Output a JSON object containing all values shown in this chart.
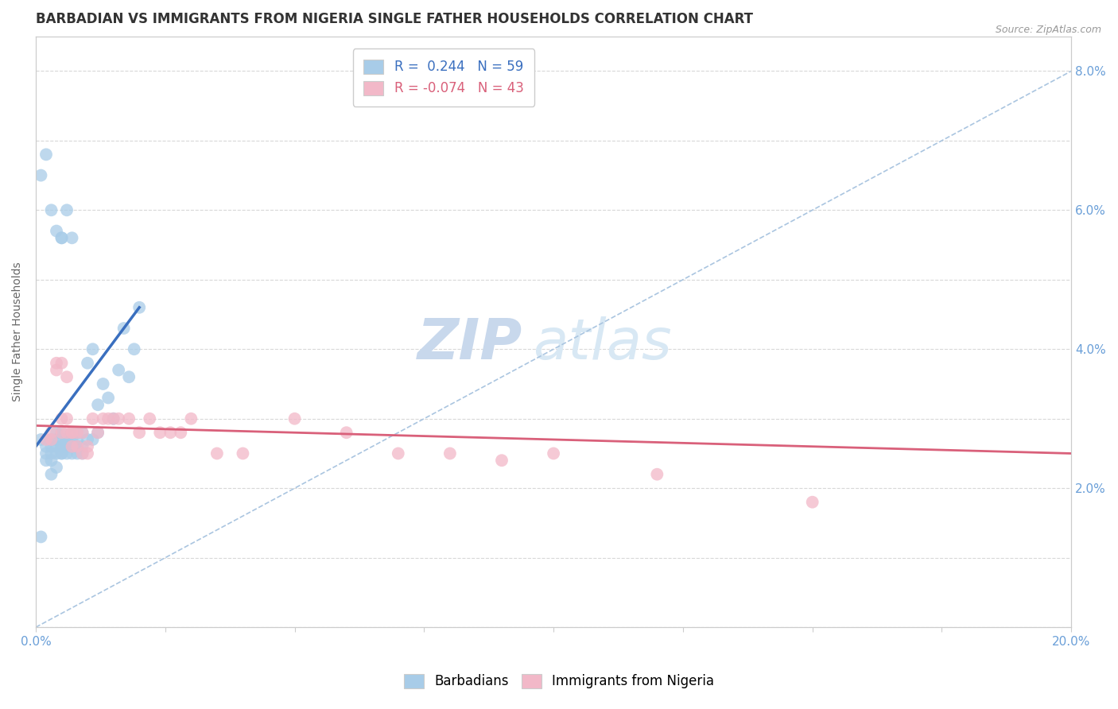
{
  "title": "BARBADIAN VS IMMIGRANTS FROM NIGERIA SINGLE FATHER HOUSEHOLDS CORRELATION CHART",
  "source": "Source: ZipAtlas.com",
  "ylabel": "Single Father Households",
  "xlabel": "",
  "xlim": [
    0.0,
    0.2
  ],
  "ylim": [
    0.0,
    0.085
  ],
  "xticks": [
    0.0,
    0.025,
    0.05,
    0.075,
    0.1,
    0.125,
    0.15,
    0.175,
    0.2
  ],
  "yticks_right": [
    0.02,
    0.04,
    0.06,
    0.08
  ],
  "yticklabels_right": [
    "2.0%",
    "4.0%",
    "6.0%",
    "8.0%"
  ],
  "legend_r1": "R =  0.244   N = 59",
  "legend_r2": "R = -0.074   N = 43",
  "color_blue": "#a8cce8",
  "color_pink": "#f2b8c8",
  "color_blue_line": "#3a6fbf",
  "color_pink_line": "#d9607a",
  "color_dashed": "#aac5e0",
  "watermark_zip": "ZIP",
  "watermark_atlas": "atlas",
  "blue_x": [
    0.001,
    0.001,
    0.002,
    0.002,
    0.002,
    0.003,
    0.003,
    0.003,
    0.003,
    0.003,
    0.004,
    0.004,
    0.004,
    0.004,
    0.004,
    0.005,
    0.005,
    0.005,
    0.005,
    0.005,
    0.005,
    0.006,
    0.006,
    0.006,
    0.006,
    0.006,
    0.007,
    0.007,
    0.007,
    0.007,
    0.008,
    0.008,
    0.008,
    0.008,
    0.009,
    0.009,
    0.009,
    0.01,
    0.01,
    0.011,
    0.011,
    0.012,
    0.012,
    0.013,
    0.014,
    0.015,
    0.016,
    0.017,
    0.018,
    0.019,
    0.02,
    0.001,
    0.002,
    0.003,
    0.004,
    0.005,
    0.005,
    0.006,
    0.007
  ],
  "blue_y": [
    0.027,
    0.013,
    0.026,
    0.025,
    0.024,
    0.026,
    0.027,
    0.025,
    0.024,
    0.022,
    0.025,
    0.026,
    0.027,
    0.028,
    0.023,
    0.026,
    0.027,
    0.025,
    0.028,
    0.026,
    0.025,
    0.026,
    0.025,
    0.026,
    0.027,
    0.027,
    0.025,
    0.027,
    0.028,
    0.026,
    0.025,
    0.026,
    0.027,
    0.028,
    0.025,
    0.026,
    0.028,
    0.027,
    0.038,
    0.027,
    0.04,
    0.028,
    0.032,
    0.035,
    0.033,
    0.03,
    0.037,
    0.043,
    0.036,
    0.04,
    0.046,
    0.065,
    0.068,
    0.06,
    0.057,
    0.056,
    0.056,
    0.06,
    0.056
  ],
  "pink_x": [
    0.002,
    0.003,
    0.003,
    0.004,
    0.004,
    0.005,
    0.005,
    0.005,
    0.006,
    0.006,
    0.006,
    0.007,
    0.007,
    0.007,
    0.008,
    0.008,
    0.009,
    0.009,
    0.01,
    0.01,
    0.011,
    0.012,
    0.013,
    0.014,
    0.015,
    0.016,
    0.018,
    0.02,
    0.022,
    0.024,
    0.026,
    0.028,
    0.03,
    0.035,
    0.04,
    0.05,
    0.06,
    0.07,
    0.08,
    0.09,
    0.1,
    0.12,
    0.15
  ],
  "pink_y": [
    0.027,
    0.027,
    0.028,
    0.037,
    0.038,
    0.038,
    0.03,
    0.028,
    0.036,
    0.03,
    0.028,
    0.028,
    0.028,
    0.026,
    0.028,
    0.026,
    0.028,
    0.025,
    0.026,
    0.025,
    0.03,
    0.028,
    0.03,
    0.03,
    0.03,
    0.03,
    0.03,
    0.028,
    0.03,
    0.028,
    0.028,
    0.028,
    0.03,
    0.025,
    0.025,
    0.03,
    0.028,
    0.025,
    0.025,
    0.024,
    0.025,
    0.022,
    0.018
  ],
  "blue_line_x": [
    0.0,
    0.02
  ],
  "blue_line_y": [
    0.026,
    0.046
  ],
  "pink_line_x": [
    0.0,
    0.2
  ],
  "pink_line_y": [
    0.029,
    0.025
  ],
  "title_fontsize": 12,
  "axis_label_fontsize": 10,
  "tick_fontsize": 11,
  "legend_fontsize": 12,
  "background_color": "#ffffff",
  "grid_color": "#d8d8d8",
  "tick_color": "#6a9fd8"
}
